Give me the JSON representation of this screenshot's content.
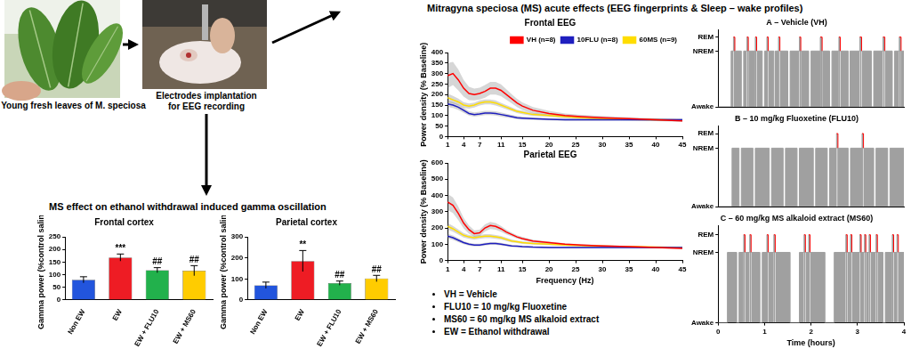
{
  "title": "Mitragyna speciosa (MS) acute effects (EEG fingerprints & Sleep – wake profiles)",
  "images": [
    {
      "caption": [
        "Young fresh leaves of M. speciosa"
      ]
    },
    {
      "caption": [
        "Electrodes implantation",
        "for EEG recording"
      ]
    }
  ],
  "bar_section_title": "MS effect on ethanol withdrawal induced gamma oscillation",
  "notes": [
    "VH = Vehicle",
    "FLU10 = 10 mg/kg Fluoxetine",
    "MS60 = 60 mg/kg MS alkaloid extract",
    "EW = Ethanol withdrawal"
  ],
  "chart_data": [
    {
      "type": "bar",
      "title": "Frontal cortex",
      "y_label": "Gamma power (%control saline)",
      "categories": [
        "Non EW",
        "EW",
        "EW + FLU10",
        "EW + MS60"
      ],
      "values": [
        80,
        168,
        118,
        116
      ],
      "errors": [
        12,
        14,
        10,
        20
      ],
      "significance": [
        null,
        "***",
        "##",
        "##"
      ],
      "colors": [
        "#2255dd",
        "#ee1c24",
        "#22b14c",
        "#ffcc00"
      ],
      "ylim": [
        0,
        250
      ],
      "yticks": [
        0,
        50,
        100,
        150,
        200,
        250
      ],
      "grid": false
    },
    {
      "type": "bar",
      "title": "Parietal cortex",
      "y_label": "Gamma power (%control saline)",
      "categories": [
        "Non EW",
        "EW",
        "EW + FLU10",
        "EW + MS60"
      ],
      "values": [
        70,
        185,
        80,
        102
      ],
      "errors": [
        15,
        50,
        10,
        15
      ],
      "significance": [
        null,
        "**",
        "##",
        "##"
      ],
      "colors": [
        "#2255dd",
        "#ee1c24",
        "#22b14c",
        "#ffcc00"
      ],
      "ylim": [
        0,
        300
      ],
      "yticks": [
        0,
        100,
        200,
        300
      ],
      "grid": false
    },
    {
      "type": "line",
      "title": "Frontal EEG",
      "y_label": "Power density (% Baseline)",
      "x": [
        1,
        2,
        3,
        4,
        5,
        6,
        7,
        8,
        9,
        10,
        11,
        12,
        13,
        14,
        15,
        17,
        20,
        23,
        26,
        30,
        35,
        40,
        45
      ],
      "series": [
        {
          "name": "VH (n=8)",
          "color": "#ff0000",
          "values": [
            290,
            300,
            270,
            230,
            205,
            200,
            205,
            215,
            230,
            230,
            220,
            200,
            180,
            160,
            145,
            125,
            110,
            100,
            95,
            90,
            85,
            80,
            75
          ],
          "errors": [
            60,
            55,
            50,
            40,
            32,
            28,
            28,
            30,
            30,
            30,
            28,
            25,
            22,
            20,
            18,
            15,
            12,
            10,
            8,
            8,
            7,
            6,
            6
          ]
        },
        {
          "name": "10FLU (n=8)",
          "color": "#1f1fbf",
          "values": [
            155,
            150,
            140,
            125,
            110,
            105,
            108,
            112,
            112,
            110,
            105,
            100,
            95,
            90,
            88,
            85,
            82,
            80,
            80,
            80,
            80,
            80,
            80
          ],
          "errors": [
            15,
            14,
            13,
            12,
            10,
            10,
            10,
            10,
            10,
            10,
            10,
            9,
            8,
            8,
            7,
            6,
            5,
            5,
            5,
            5,
            5,
            5,
            5
          ]
        },
        {
          "name": "60MS (n=9)",
          "color": "#ffdd00",
          "values": [
            185,
            175,
            165,
            150,
            145,
            150,
            160,
            165,
            165,
            160,
            150,
            140,
            130,
            120,
            115,
            105,
            100,
            95,
            90,
            85,
            82,
            80,
            78
          ],
          "errors": [
            20,
            18,
            16,
            14,
            12,
            12,
            12,
            12,
            12,
            12,
            11,
            10,
            9,
            8,
            8,
            7,
            6,
            6,
            5,
            5,
            5,
            5,
            5
          ]
        }
      ],
      "xlim": [
        1,
        45
      ],
      "xticks": [
        1,
        4,
        7,
        11,
        15,
        20,
        25,
        30,
        35,
        40,
        45
      ],
      "ylim": [
        0,
        400
      ],
      "yticks": [
        0,
        50,
        100,
        150,
        200,
        250,
        300,
        350,
        400
      ],
      "legend": "upper right",
      "grid": false
    },
    {
      "type": "line",
      "title": "Parietal EEG",
      "y_label": "Power density (% Baseline)",
      "x_label": "Frequency (Hz)",
      "x": [
        1,
        2,
        3,
        4,
        5,
        6,
        7,
        8,
        9,
        10,
        11,
        12,
        13,
        14,
        15,
        17,
        20,
        23,
        26,
        30,
        35,
        40,
        45
      ],
      "series": [
        {
          "name": "VH (n=8)",
          "color": "#ff0000",
          "values": [
            360,
            340,
            290,
            230,
            190,
            165,
            170,
            200,
            215,
            210,
            195,
            175,
            160,
            145,
            135,
            120,
            110,
            100,
            95,
            90,
            85,
            80,
            75
          ],
          "errors": [
            50,
            48,
            42,
            32,
            25,
            20,
            20,
            22,
            22,
            20,
            18,
            15,
            12,
            10,
            10,
            8,
            7,
            6,
            5,
            5,
            5,
            5,
            5
          ]
        },
        {
          "name": "10FLU (n=8)",
          "color": "#1f1fbf",
          "values": [
            150,
            140,
            125,
            110,
            100,
            95,
            95,
            100,
            105,
            105,
            100,
            95,
            90,
            88,
            85,
            82,
            80,
            80,
            80,
            80,
            80,
            80,
            80
          ],
          "errors": [
            15,
            14,
            12,
            10,
            9,
            8,
            8,
            8,
            8,
            8,
            8,
            7,
            7,
            6,
            6,
            5,
            5,
            5,
            5,
            5,
            5,
            5,
            5
          ]
        },
        {
          "name": "60MS (n=9)",
          "color": "#ffdd00",
          "values": [
            210,
            195,
            175,
            155,
            145,
            140,
            145,
            150,
            150,
            145,
            140,
            130,
            120,
            115,
            110,
            105,
            100,
            95,
            92,
            88,
            85,
            82,
            80
          ],
          "errors": [
            20,
            18,
            16,
            14,
            12,
            12,
            12,
            12,
            12,
            12,
            11,
            10,
            9,
            8,
            8,
            7,
            6,
            6,
            5,
            5,
            5,
            5,
            5
          ]
        }
      ],
      "xlim": [
        1,
        45
      ],
      "xticks": [
        1,
        4,
        7,
        11,
        15,
        20,
        25,
        30,
        35,
        40,
        45
      ],
      "ylim": [
        0,
        600
      ],
      "yticks": [
        0,
        100,
        200,
        300,
        400,
        500,
        600
      ],
      "grid": false
    },
    {
      "type": "line",
      "line_style": "step",
      "title": "A – Vehicle (VH)",
      "color": "#a0a0a0",
      "x": [
        0,
        0.28,
        0.33,
        0.36,
        0.5,
        0.55,
        0.62,
        0.65,
        0.8,
        0.83,
        0.95,
        1.0,
        1.05,
        1.08,
        1.2,
        1.23,
        1.3,
        1.33,
        1.5,
        1.55,
        1.75,
        1.78,
        1.95,
        2.0,
        2.2,
        2.24,
        2.4,
        2.45,
        2.6,
        2.63,
        2.8,
        2.84,
        3.05,
        3.09,
        3.3,
        3.35,
        3.55,
        3.59,
        3.75,
        3.8,
        3.9,
        3.94,
        4
      ],
      "values": [
        0,
        4,
        5,
        4,
        0,
        4,
        5,
        4,
        5,
        4,
        0,
        4,
        5,
        4,
        0,
        4,
        5,
        4,
        0,
        4,
        5,
        4,
        0,
        4,
        5,
        4,
        0,
        4,
        5,
        4,
        0,
        4,
        5,
        4,
        0,
        4,
        5,
        4,
        0,
        4,
        5,
        4,
        4
      ],
      "xlim": [
        0,
        4
      ],
      "ylim": [
        0,
        5.5
      ],
      "yticks": [
        {
          "value": 0,
          "label": "Awake"
        },
        {
          "value": 4,
          "label": "NREM"
        },
        {
          "value": 5,
          "label": "REM"
        }
      ],
      "tick_labels": "y",
      "grid": false
    },
    {
      "type": "line",
      "line_style": "step",
      "title": "B – 10 mg/kg Fluoxetine (FLU10)",
      "color": "#a0a0a0",
      "x": [
        0,
        0.3,
        0.45,
        0.5,
        0.75,
        0.8,
        1.1,
        1.15,
        1.4,
        1.45,
        1.7,
        1.75,
        2.05,
        2.1,
        2.35,
        2.4,
        2.55,
        2.58,
        2.8,
        2.85,
        3.1,
        3.13,
        3.35,
        3.4,
        3.65,
        3.7,
        4
      ],
      "values": [
        0,
        4,
        0,
        4,
        0,
        4,
        0,
        4,
        0,
        4,
        0,
        4,
        0,
        4,
        0,
        4,
        5,
        4,
        0,
        4,
        5,
        4,
        0,
        4,
        0,
        4,
        4
      ],
      "xlim": [
        0,
        4
      ],
      "ylim": [
        0,
        5.5
      ],
      "yticks": [
        {
          "value": 0,
          "label": "Awake"
        },
        {
          "value": 4,
          "label": "NREM"
        },
        {
          "value": 5,
          "label": "REM"
        }
      ],
      "tick_labels": "y",
      "grid": false
    },
    {
      "type": "line",
      "line_style": "step",
      "title": "C – 60 mg/kg MS alkaloid extract (MS60)",
      "color": "#a0a0a0",
      "x_label": "Time (hours)",
      "x": [
        0,
        0.2,
        0.4,
        0.45,
        0.55,
        0.58,
        0.68,
        0.71,
        0.9,
        0.95,
        1.05,
        1.08,
        1.2,
        1.23,
        1.55,
        1.75,
        1.85,
        1.88,
        1.95,
        1.98,
        2.3,
        2.5,
        2.75,
        2.78,
        2.85,
        2.88,
        3.05,
        3.08,
        3.15,
        3.18,
        3.25,
        3.28,
        3.4,
        3.43,
        3.55,
        3.6,
        3.75,
        3.78,
        3.85,
        3.88,
        4
      ],
      "values": [
        0,
        4,
        0,
        4,
        5,
        4,
        5,
        4,
        0,
        4,
        5,
        4,
        5,
        4,
        0,
        4,
        5,
        4,
        5,
        4,
        0,
        4,
        5,
        4,
        5,
        4,
        5,
        4,
        5,
        4,
        5,
        4,
        5,
        4,
        0,
        4,
        5,
        4,
        5,
        4,
        4
      ],
      "xlim": [
        0,
        4
      ],
      "xticks": [
        0,
        1,
        2,
        3,
        4
      ],
      "ylim": [
        0,
        5.5
      ],
      "yticks": [
        {
          "value": 0,
          "label": "Awake"
        },
        {
          "value": 4,
          "label": "NREM"
        },
        {
          "value": 5,
          "label": "REM"
        }
      ],
      "grid": false
    }
  ]
}
